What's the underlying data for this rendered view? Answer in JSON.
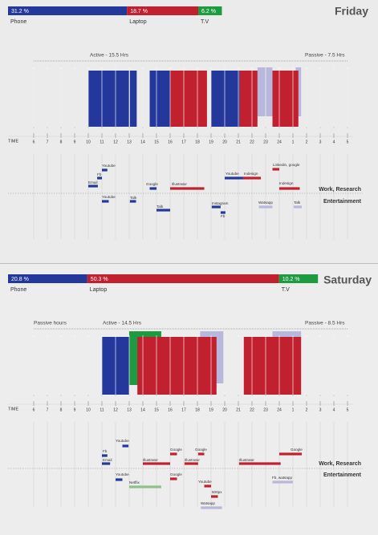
{
  "time_label": "TIME",
  "hours": [
    "6",
    "7",
    "8",
    "9",
    "10",
    "11",
    "12",
    "13",
    "14",
    "15",
    "16",
    "17",
    "18",
    "19",
    "20",
    "21",
    "22",
    "23",
    "24",
    "1",
    "2",
    "3",
    "4",
    "5"
  ],
  "days": [
    {
      "title": "Friday",
      "shares": [
        {
          "value": 31.2,
          "label": "31.2 %",
          "device": "Phone",
          "color": "#23389a"
        },
        {
          "value": 18.7,
          "label": "18.7 %",
          "device": "Laptop",
          "color": "#c1202f"
        },
        {
          "value": 6.2,
          "label": "6.2 %",
          "device": "T.V",
          "color": "#1e9a40"
        }
      ],
      "headers": [
        "Active - 15.5 Hrs",
        "Passive - 7.5 Hrs"
      ],
      "blocks": [
        {
          "start": 22.4,
          "end": 23.5,
          "color": "#b8b8dc"
        },
        {
          "start": 25.2,
          "end": 25.6,
          "color": "#b8b8dc"
        },
        {
          "start": 10,
          "end": 13,
          "color": "#23389a"
        },
        {
          "start": 13.05,
          "end": 13.55,
          "color": "#23389a"
        },
        {
          "start": 14.5,
          "end": 16,
          "color": "#23389a"
        },
        {
          "start": 16,
          "end": 18.7,
          "color": "#c1202f"
        },
        {
          "start": 19,
          "end": 21.1,
          "color": "#23389a"
        },
        {
          "start": 21.1,
          "end": 22.4,
          "color": "#c1202f"
        },
        {
          "start": 23.5,
          "end": 25.4,
          "color": "#c1202f"
        }
      ],
      "sections": [
        "Work, Research",
        "Entertainment"
      ],
      "apps": [
        {
          "name": "Youtube",
          "start": 11,
          "end": 11.4,
          "color": "#23389a"
        },
        {
          "name": "Fb",
          "start": 10.65,
          "end": 11,
          "color": "#23389a"
        },
        {
          "name": "Email",
          "start": 10,
          "end": 10.7,
          "color": "#23389a"
        },
        {
          "name": "Google",
          "start": 14.5,
          "end": 15,
          "color": "#23389a"
        },
        {
          "name": "Illustrator",
          "start": 16,
          "end": 18.5,
          "color": "#c1202f"
        },
        {
          "name": "Youtube",
          "start": 20,
          "end": 21.35,
          "color": "#23389a"
        },
        {
          "name": "Indesign",
          "start": 21.35,
          "end": 22.65,
          "color": "#c1202f"
        },
        {
          "name": "Linkedin, google",
          "start": 23.5,
          "end": 24,
          "color": "#c1202f"
        },
        {
          "name": "Indesign",
          "start": 24,
          "end": 25.5,
          "color": "#c1202f"
        },
        {
          "name": "Youtube",
          "start": 11,
          "end": 11.5,
          "color": "#23389a"
        },
        {
          "name": "Talk",
          "start": 13.05,
          "end": 13.5,
          "color": "#23389a"
        },
        {
          "name": "Talk",
          "start": 15,
          "end": 16,
          "color": "#23389a"
        },
        {
          "name": "Instagram",
          "start": 19.05,
          "end": 19.7,
          "color": "#23389a"
        },
        {
          "name": "Fb",
          "start": 19.7,
          "end": 20.05,
          "color": "#23389a"
        },
        {
          "name": "Watsapp",
          "start": 22.5,
          "end": 23.5,
          "color": "#b8b8dc"
        },
        {
          "name": "Talk",
          "start": 25.05,
          "end": 25.65,
          "color": "#b8b8dc"
        }
      ]
    },
    {
      "title": "Saturday",
      "shares": [
        {
          "value": 20.8,
          "label": "20.8 %",
          "device": "Phone",
          "color": "#23389a"
        },
        {
          "value": 50.3,
          "label": "50.3 %",
          "device": "Laptop",
          "color": "#c1202f"
        },
        {
          "value": 10.2,
          "label": "10.2 %",
          "device": "T.V",
          "color": "#1e9a40"
        }
      ],
      "headers": [
        "Passive hours",
        "Active - 14.5 Hrs",
        "Passive - 8.5 Hrs"
      ],
      "blocks": [
        {
          "start": 13,
          "end": 15.35,
          "color": "#1e9a40"
        },
        {
          "start": 18.2,
          "end": 19.9,
          "color": "#b8b8dc"
        },
        {
          "start": 23.5,
          "end": 25.6,
          "color": "#b8b8dc"
        },
        {
          "start": 11,
          "end": 13,
          "color": "#23389a"
        },
        {
          "start": 13.6,
          "end": 19.4,
          "color": "#c1202f"
        },
        {
          "start": 21.4,
          "end": 25.6,
          "color": "#c1202f"
        }
      ],
      "sections": [
        "Work, Research",
        "Entertainment"
      ],
      "apps": [
        {
          "name": "Youtube",
          "start": 12.5,
          "end": 12.95,
          "color": "#23389a"
        },
        {
          "name": "Fb",
          "start": 11,
          "end": 11.4,
          "color": "#23389a"
        },
        {
          "name": "Email",
          "start": 11,
          "end": 11.6,
          "color": "#23389a"
        },
        {
          "name": "Illustrator",
          "start": 14,
          "end": 16,
          "color": "#c1202f"
        },
        {
          "name": "Google",
          "start": 16,
          "end": 16.5,
          "color": "#c1202f"
        },
        {
          "name": "Illustrator",
          "start": 17.05,
          "end": 18.05,
          "color": "#c1202f"
        },
        {
          "name": "Google",
          "start": 18.05,
          "end": 18.5,
          "color": "#c1202f"
        },
        {
          "name": "Illustrator",
          "start": 21.05,
          "end": 24.1,
          "color": "#c1202f"
        },
        {
          "name": "Google",
          "start": 24,
          "end": 25.65,
          "color": "#c1202f"
        },
        {
          "name": "Youtube",
          "start": 12,
          "end": 12.5,
          "color": "#23389a"
        },
        {
          "name": "Google",
          "start": 16,
          "end": 16.5,
          "color": "#c1202f"
        },
        {
          "name": "Netflix",
          "start": 13,
          "end": 15.35,
          "color": "#8cc08c"
        },
        {
          "name": "Youtube",
          "start": 18.5,
          "end": 19,
          "color": "#c1202f"
        },
        {
          "name": "500px",
          "start": 19,
          "end": 19.5,
          "color": "#c1202f"
        },
        {
          "name": "Fb, watsapp",
          "start": 23.5,
          "end": 25,
          "color": "#b8b8dc"
        },
        {
          "name": "Watsapp",
          "start": 18.25,
          "end": 19.8,
          "color": "#b8b8dc"
        }
      ]
    }
  ]
}
